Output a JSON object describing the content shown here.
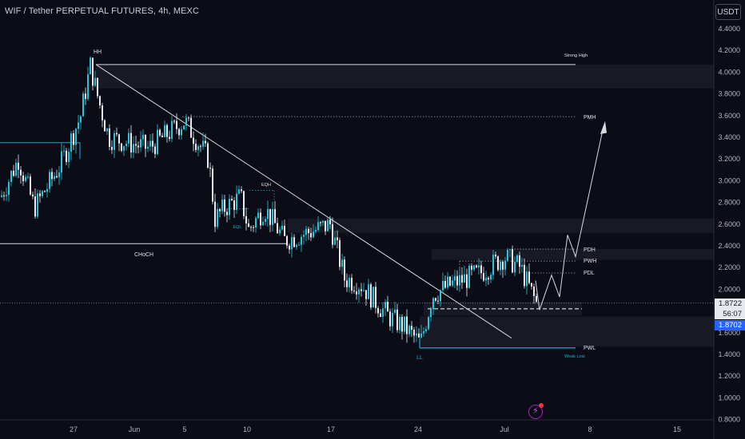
{
  "header": {
    "title": "WIF / Tether PERPETUAL FUTURES, 4h, MEXC",
    "currency": "USDT"
  },
  "price_tags": {
    "last": "1.8722",
    "countdown": "56:07",
    "close": "1.8702"
  },
  "annotations": {
    "hh": "HH",
    "ll": "LL",
    "choch": "CHoCH",
    "eqh": "EQH",
    "eql": "EQL",
    "strong_high": "Strong High",
    "weak_low": "Weak Low",
    "pmh": "PMH",
    "pdh": "PDH",
    "pwh": "PWH",
    "pdl": "PDL",
    "pwl": "PWL"
  },
  "colors": {
    "background": "#0b0c16",
    "bull": "#26c6da",
    "bear": "#e8eaef",
    "last_price": "#e6e8ee",
    "close_price": "#2962ff",
    "zone": "#1a1c28",
    "accent": "#26a8c9",
    "logo": "#9c27b0"
  },
  "chart_data": {
    "type": "candlestick",
    "title": "WIF / Tether PERPETUAL FUTURES, 4h, MEXC",
    "yaxis_ticks": [
      "4.4000",
      "4.2000",
      "4.0000",
      "3.8000",
      "3.6000",
      "3.4000",
      "3.2000",
      "3.0000",
      "2.8000",
      "2.6000",
      "2.4000",
      "2.2000",
      "2.0000",
      "1.8000",
      "1.6000",
      "1.4000",
      "1.2000",
      "1.0000",
      "0.8000"
    ],
    "xaxis_ticks": [
      "27",
      "Jun",
      "5",
      "10",
      "17",
      "24",
      "Jul",
      "8",
      "15"
    ],
    "ylim": [
      0.8,
      4.4
    ],
    "price_path": [
      {
        "date": "May 22",
        "close": 2.85
      },
      {
        "date": "May 24",
        "close": 3.2
      },
      {
        "date": "May 25",
        "close": 2.75
      },
      {
        "date": "May 27",
        "close": 3.15
      },
      {
        "date": "May 27",
        "close": 3.6
      },
      {
        "date": "May 28",
        "close": 4.06
      },
      {
        "date": "May 29",
        "close": 3.75
      },
      {
        "date": "May 30",
        "close": 3.4
      },
      {
        "date": "Jun 2",
        "close": 3.3
      },
      {
        "date": "Jun 5",
        "close": 3.55
      },
      {
        "date": "Jun 7",
        "close": 3.2
      },
      {
        "date": "Jun 8",
        "close": 2.65
      },
      {
        "date": "Jun 9",
        "close": 2.75
      },
      {
        "date": "Jun 10",
        "close": 2.85
      },
      {
        "date": "Jun 11",
        "close": 2.55
      },
      {
        "date": "Jun 12",
        "close": 2.75
      },
      {
        "date": "Jun 14",
        "close": 2.45
      },
      {
        "date": "Jun 16",
        "close": 2.55
      },
      {
        "date": "Jun 17",
        "close": 2.6
      },
      {
        "date": "Jun 18",
        "close": 2.1
      },
      {
        "date": "Jun 20",
        "close": 2.05
      },
      {
        "date": "Jun 22",
        "close": 1.75
      },
      {
        "date": "Jun 23",
        "close": 1.65
      },
      {
        "date": "Jun 24",
        "close": 1.5
      },
      {
        "date": "Jun 24",
        "close": 1.95
      },
      {
        "date": "Jun 26",
        "close": 2.05
      },
      {
        "date": "Jun 28",
        "close": 2.15
      },
      {
        "date": "Jun 30",
        "close": 2.3
      },
      {
        "date": "Jul 1",
        "close": 2.2
      },
      {
        "date": "Jul 2",
        "close": 1.8702
      }
    ],
    "levels": [
      {
        "label": "Strong High",
        "price": 4.07
      },
      {
        "label": "PMH",
        "price": 3.59
      },
      {
        "label": "PDH",
        "price": 2.37
      },
      {
        "label": "PWH",
        "price": 2.26
      },
      {
        "label": "PDL",
        "price": 2.15
      },
      {
        "label": "PWL",
        "price": 1.46
      },
      {
        "label": "CHoCH",
        "price": 2.42
      },
      {
        "label": "EQH",
        "price": 2.91
      },
      {
        "label": "EQL",
        "price": 2.72
      }
    ],
    "last_price": 1.8722,
    "close_price": 1.8702
  }
}
